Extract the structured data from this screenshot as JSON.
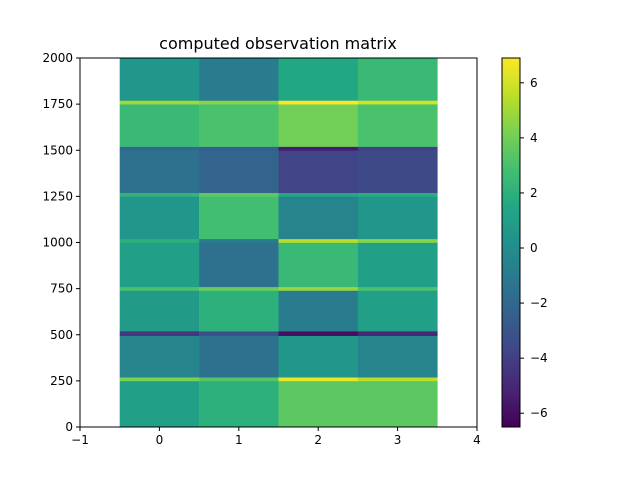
{
  "chart_data": {
    "type": "heatmap",
    "title": "computed observation matrix",
    "xlabel": "",
    "ylabel": "",
    "xlim": [
      -1,
      4
    ],
    "ylim": [
      0,
      2000
    ],
    "x_ticks": [
      -1,
      0,
      1,
      2,
      3,
      4
    ],
    "y_ticks": [
      0,
      250,
      500,
      750,
      1000,
      1250,
      1500,
      1750,
      2000
    ],
    "colormap": "viridis",
    "colorbar": {
      "min": -6.5,
      "max": 6.9,
      "ticks": [
        -6,
        -4,
        -2,
        0,
        2,
        4,
        6
      ]
    },
    "cell_x_range": [
      -0.5,
      3.5
    ],
    "column_positions": [
      0,
      1,
      2,
      3
    ],
    "row_count": 2000,
    "segments": [
      {
        "y0": 0,
        "y1": 250,
        "values": [
          1.0,
          2.0,
          3.5,
          3.5
        ]
      },
      {
        "y0": 250,
        "values_note": "",
        "y1": 270,
        "values": [
          4.2,
          3.3,
          6.5,
          5.5
        ]
      },
      {
        "y0": 270,
        "y1": 495,
        "values": [
          -0.5,
          -1.5,
          0.5,
          -0.5
        ]
      },
      {
        "y0": 495,
        "y1": 520,
        "values": [
          -4.5,
          -3.2,
          -6.0,
          -5.0
        ]
      },
      {
        "y0": 520,
        "y1": 740,
        "values": [
          0.8,
          2.0,
          -1.0,
          1.0
        ]
      },
      {
        "y0": 740,
        "y1": 760,
        "values": [
          3.0,
          3.8,
          4.8,
          3.0
        ]
      },
      {
        "y0": 760,
        "y1": 1000,
        "values": [
          1.0,
          -1.5,
          2.5,
          1.0
        ]
      },
      {
        "y0": 1000,
        "y1": 1020,
        "values": [
          2.0,
          -1.0,
          5.5,
          4.5
        ]
      },
      {
        "y0": 1020,
        "y1": 1250,
        "values": [
          0.5,
          2.8,
          -0.5,
          0.5
        ]
      },
      {
        "y0": 1250,
        "y1": 1270,
        "values": [
          2.2,
          3.5,
          1.5,
          1.8
        ]
      },
      {
        "y0": 1270,
        "y1": 1500,
        "values": [
          -1.5,
          -2.2,
          -3.8,
          -3.5
        ]
      },
      {
        "y0": 1500,
        "y1": 1520,
        "values": [
          -2.0,
          -2.5,
          -5.5,
          -4.0
        ]
      },
      {
        "y0": 1520,
        "y1": 1750,
        "values": [
          2.5,
          3.0,
          4.0,
          3.0
        ]
      },
      {
        "y0": 1750,
        "y1": 1770,
        "values": [
          5.0,
          4.5,
          7.0,
          6.0
        ]
      },
      {
        "y0": 1770,
        "y1": 2000,
        "values": [
          0.5,
          -1.0,
          1.5,
          2.5
        ]
      }
    ]
  }
}
